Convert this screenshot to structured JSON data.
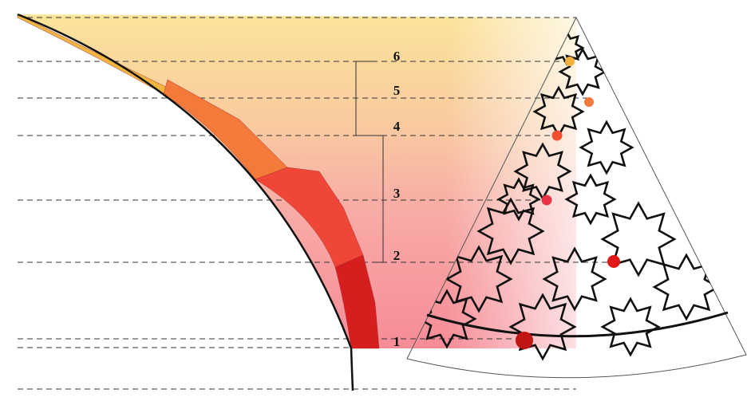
{
  "labels": [
    "1",
    "2",
    "3",
    "4",
    "5",
    "6"
  ]
}
